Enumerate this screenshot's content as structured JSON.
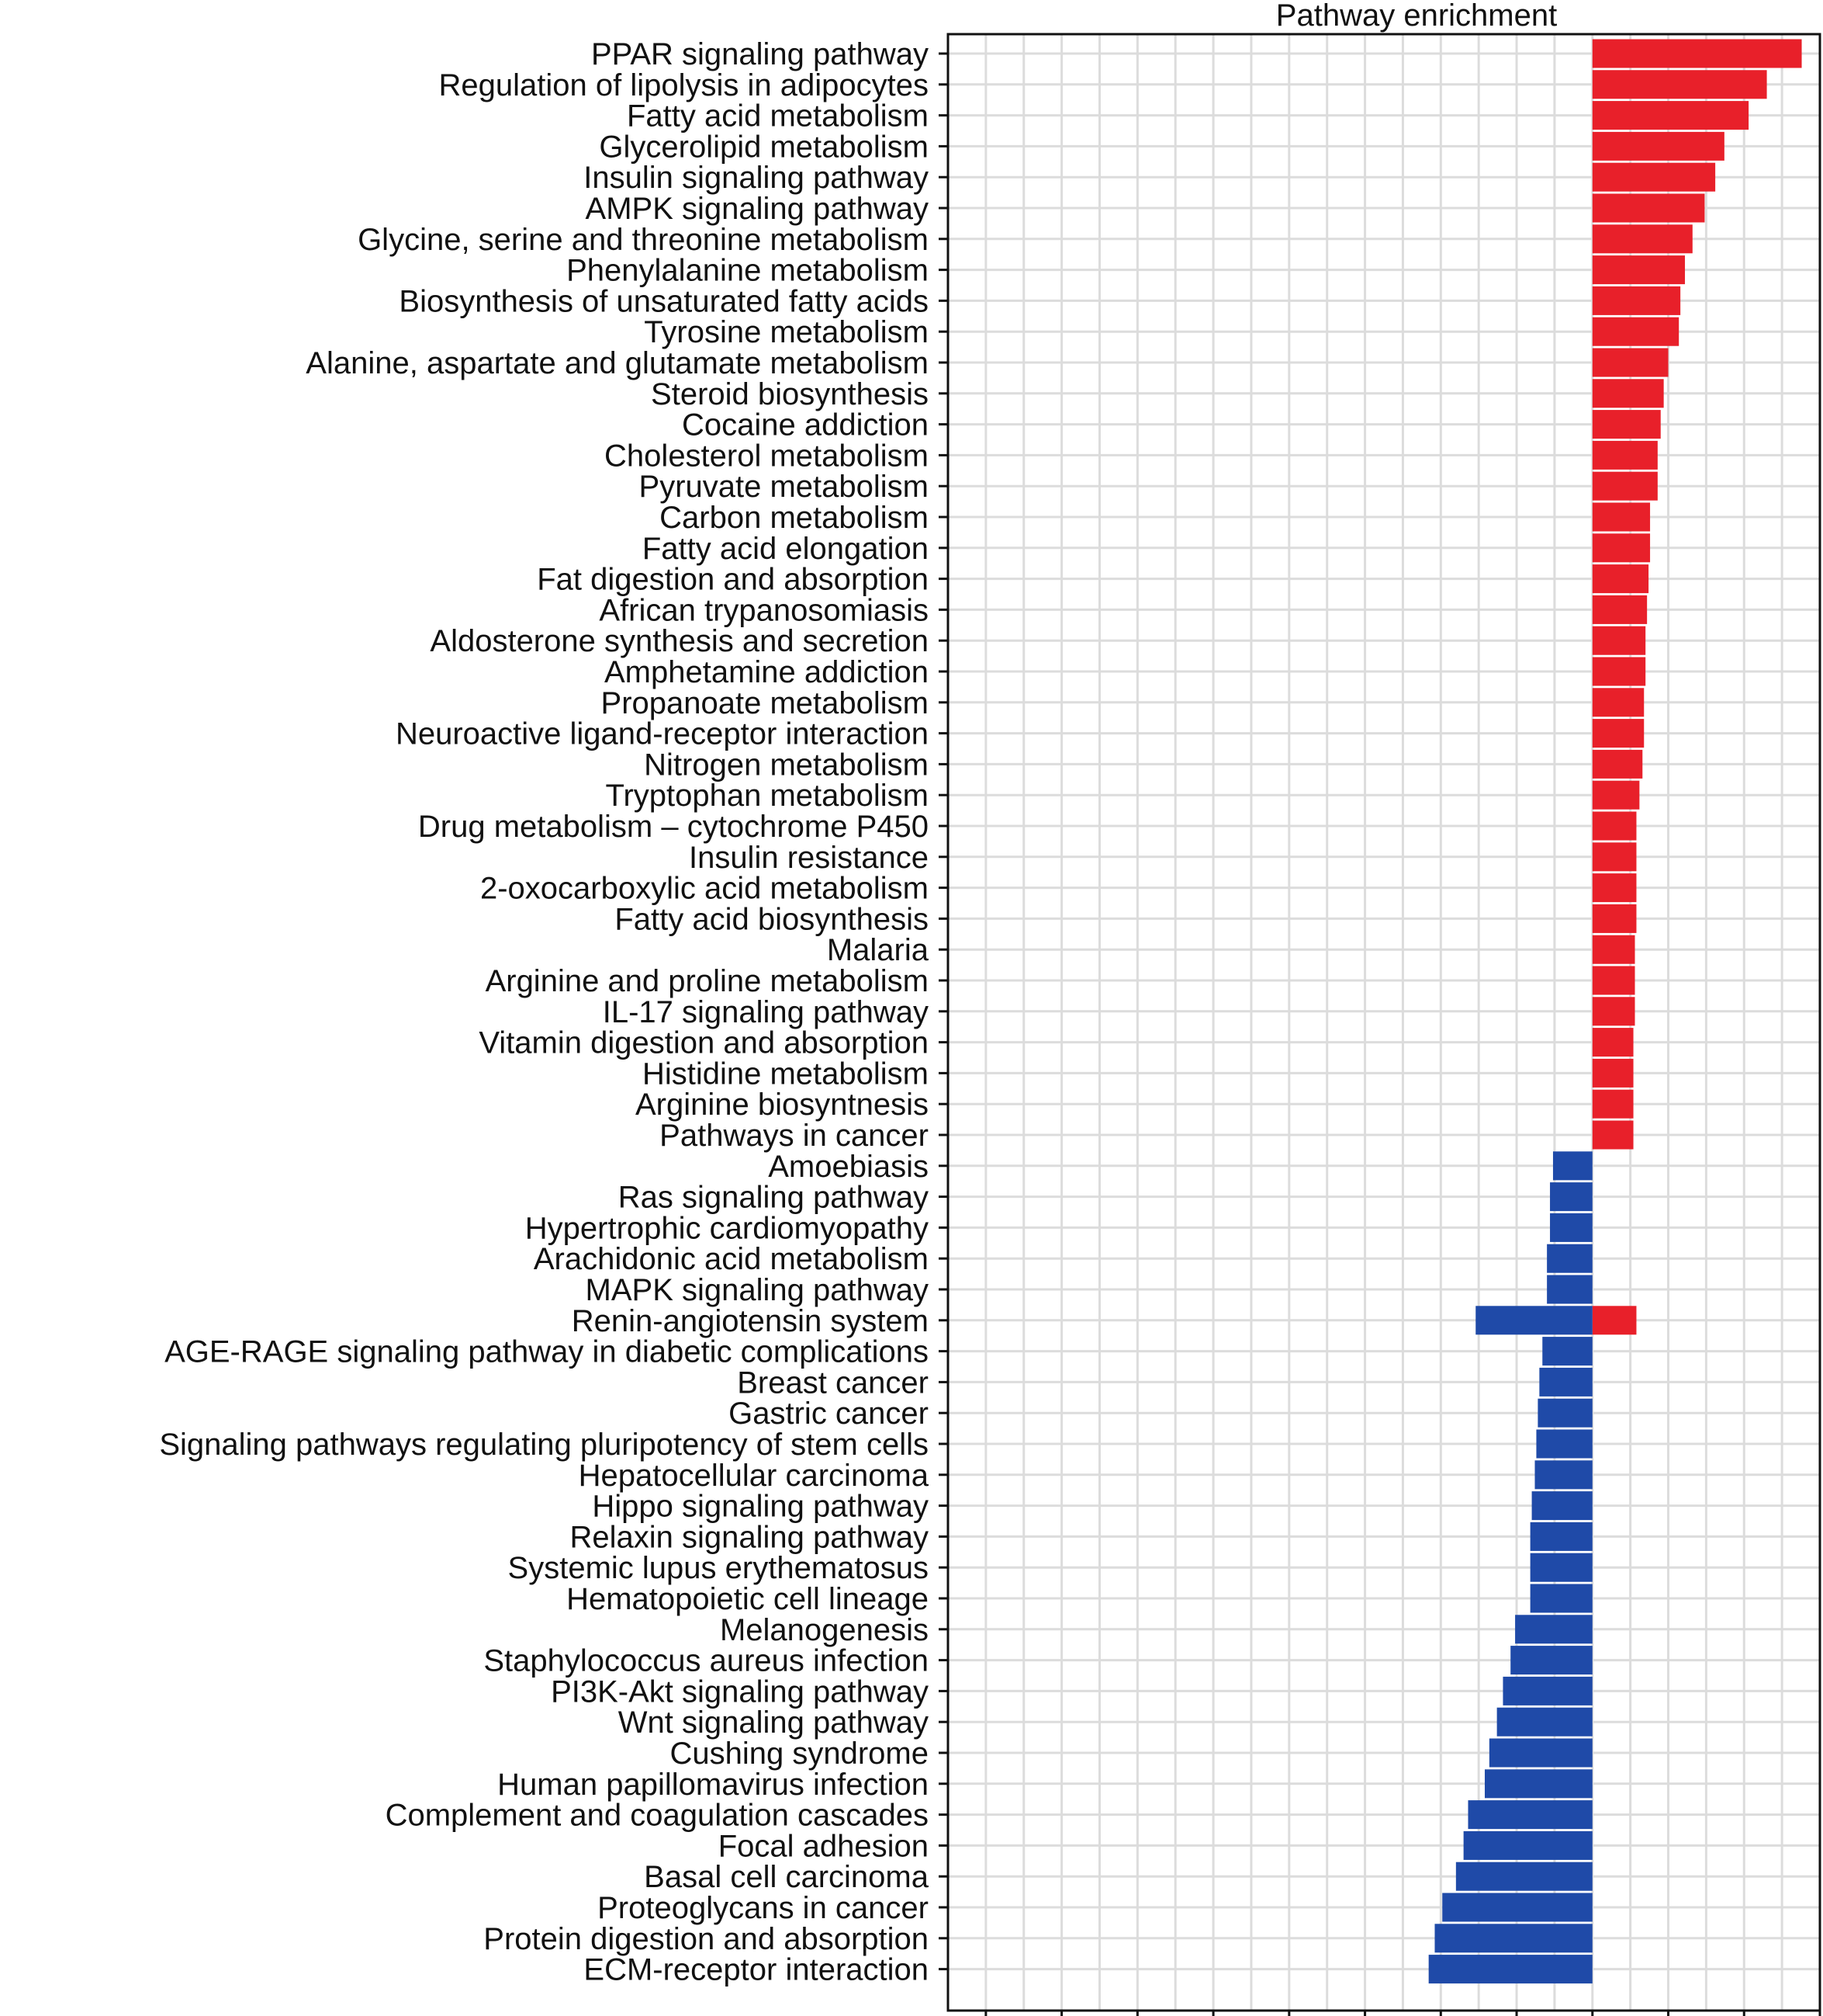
{
  "chart_data": {
    "type": "bar",
    "orientation": "horizontal",
    "title": "Pathway enrichment",
    "xlabel": "",
    "ylabel": "",
    "grid": true,
    "xlim": [
      -42.5,
      15
    ],
    "categories": [
      "PPAR signaling pathway",
      "Regulation of lipolysis in adipocytes",
      "Fatty acid metabolism",
      "Glycerolipid metabolism",
      "Insulin signaling pathway",
      "AMPK signaling pathway",
      "Glycine, serine and threonine metabolism",
      "Phenylalanine metabolism",
      "Biosynthesis of unsaturated fatty acids",
      "Tyrosine metabolism",
      "Alanine, aspartate and glutamate metabolism",
      "Steroid biosynthesis",
      "Cocaine addiction",
      "Cholesterol metabolism",
      "Pyruvate metabolism",
      "Carbon metabolism",
      "Fatty acid elongation",
      "Fat digestion and absorption",
      "African trypanosomiasis",
      "Aldosterone synthesis and secretion",
      "Amphetamine addiction",
      "Propanoate metabolism",
      "Neuroactive ligand-receptor interaction",
      "Nitrogen metabolism",
      "Tryptophan metabolism",
      "Drug metabolism – cytochrome P450",
      "Insulin resistance",
      "2-oxocarboxylic acid metabolism",
      "Fatty acid biosynthesis",
      "Malaria",
      "Arginine and proline metabolism",
      "IL-17 signaling pathway",
      "Vitamin digestion and absorption",
      "Histidine metabolism",
      "Arginine biosyntnesis",
      "Pathways in cancer",
      "Amoebiasis",
      "Ras signaling pathway",
      "Hypertrophic cardiomyopathy",
      "Arachidonic acid metabolism",
      "MAPK signaling pathway",
      "Renin-angiotensin system",
      "AGE-RAGE signaling pathway in diabetic complications",
      "Breast cancer",
      "Gastric cancer",
      "Signaling pathways regulating pluripotency of stem cells",
      "Hepatocellular carcinoma",
      "Hippo signaling pathway",
      "Relaxin signaling pathway",
      "Systemic lupus erythematosus",
      "Hematopoietic cell lineage",
      "Melanogenesis",
      "Staphylococcus aureus infection",
      "PI3K-Akt signaling pathway",
      "Wnt signaling pathway",
      "Cushing syndrome",
      "Human papillomavirus infection",
      "Complement and coagulation cascades",
      "Focal adhesion",
      "Basal cell carcinoma",
      "Proteoglycans in cancer",
      "Protein digestion and absorption",
      "ECM-receptor interaction"
    ],
    "series": [
      {
        "color": "#e8202a",
        "values": [
          13.8,
          11.5,
          10.3,
          8.7,
          8.1,
          7.4,
          6.6,
          6.1,
          5.8,
          5.7,
          5.0,
          4.7,
          4.5,
          4.3,
          4.3,
          3.8,
          3.8,
          3.7,
          3.6,
          3.5,
          3.5,
          3.4,
          3.4,
          3.3,
          3.1,
          2.9,
          2.9,
          2.9,
          2.9,
          2.8,
          2.8,
          2.8,
          2.7,
          2.7,
          2.7,
          2.7,
          0,
          0,
          0,
          0,
          0,
          2.9,
          0,
          0,
          0,
          0,
          0,
          0,
          0,
          0,
          0,
          0,
          0,
          0,
          0,
          0,
          0,
          0,
          0,
          0,
          0,
          0,
          0
        ]
      },
      {
        "color": "#1f4aa8",
        "values": [
          0,
          0,
          0,
          0,
          0,
          0,
          0,
          0,
          0,
          0,
          0,
          0,
          0,
          0,
          0,
          0,
          0,
          0,
          0,
          0,
          0,
          0,
          0,
          0,
          0,
          0,
          0,
          0,
          0,
          0,
          0,
          0,
          0,
          0,
          0,
          0,
          -2.6,
          -2.8,
          -2.8,
          -3.0,
          -3.0,
          -7.7,
          -3.3,
          -3.5,
          -3.6,
          -3.7,
          -3.8,
          -4.0,
          -4.1,
          -4.1,
          -4.1,
          -5.1,
          -5.4,
          -5.9,
          -6.3,
          -6.8,
          -7.1,
          -8.2,
          -8.5,
          -9.0,
          -9.9,
          -10.4,
          -10.8
        ]
      }
    ]
  }
}
